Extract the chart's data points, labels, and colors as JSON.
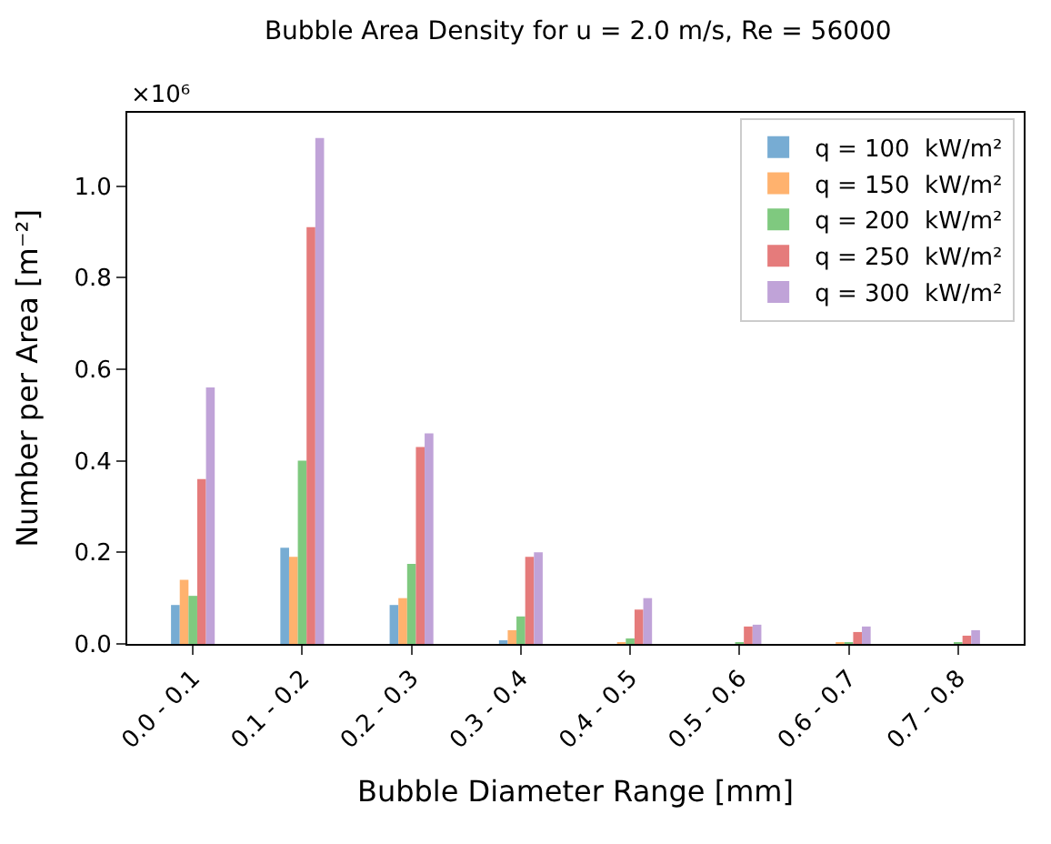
{
  "chart_data": {
    "type": "bar",
    "title": "Bubble Area Density for u = 2.0 m/s, Re = 56000",
    "xlabel": "Bubble Diameter Range [mm]",
    "ylabel": "Number per Area [m⁻²]",
    "annotations": [
      "×10⁶"
    ],
    "categories": [
      "0.0 - 0.1",
      "0.1 - 0.2",
      "0.2 - 0.3",
      "0.3 - 0.4",
      "0.4 - 0.5",
      "0.5 - 0.6",
      "0.6 - 0.7",
      "0.7 - 0.8"
    ],
    "series": [
      {
        "name": "q = 100  kW/m²",
        "color": "#77acd3",
        "values": [
          0.085,
          0.21,
          0.085,
          0.005,
          0,
          0,
          0,
          0
        ]
      },
      {
        "name": "q = 150  kW/m²",
        "color": "#ffb26e",
        "values": [
          0.14,
          0.19,
          0.1,
          0.03,
          0.003,
          0,
          0.003,
          0
        ]
      },
      {
        "name": "q = 200  kW/m²",
        "color": "#7fc97f",
        "values": [
          0.105,
          0.4,
          0.175,
          0.06,
          0.012,
          0.003,
          0.002,
          0.003
        ]
      },
      {
        "name": "q = 250  kW/m²",
        "color": "#e57b7b",
        "values": [
          0.36,
          0.91,
          0.43,
          0.19,
          0.075,
          0.038,
          0.026,
          0.018
        ]
      },
      {
        "name": "q = 300  kW/m²",
        "color": "#c0a3d8",
        "values": [
          0.56,
          1.105,
          0.46,
          0.2,
          0.1,
          0.042,
          0.038,
          0.03
        ]
      }
    ],
    "ylim": [
      0,
      1.16
    ],
    "yticks": [
      {
        "value": 0,
        "label": "0.0"
      },
      0.2,
      0.4,
      0.6,
      0.8,
      {
        "value": 1,
        "label": "1.0"
      }
    ],
    "legend": "top right"
  }
}
